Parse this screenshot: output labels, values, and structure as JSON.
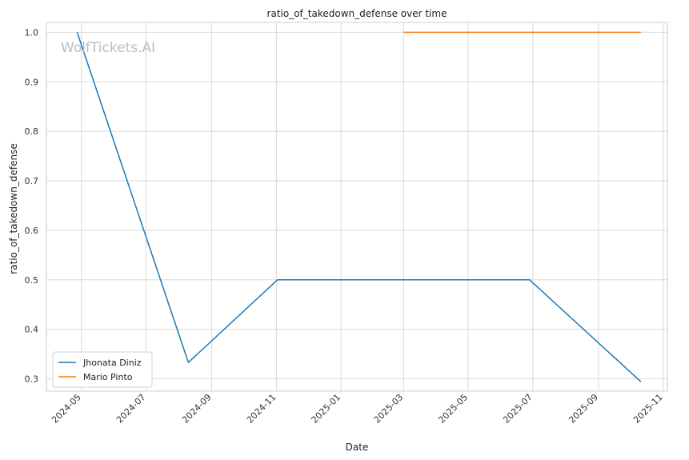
{
  "chart_data": {
    "type": "line",
    "title": "ratio_of_takedown_defense over time",
    "xlabel": "Date",
    "ylabel": "ratio_of_takedown_defense",
    "watermark": "WolfTickets.AI",
    "x_ticks": [
      "2024-05",
      "2024-07",
      "2024-09",
      "2024-11",
      "2025-01",
      "2025-03",
      "2025-05",
      "2025-07",
      "2025-09",
      "2025-11"
    ],
    "y_ticks": [
      0.3,
      0.4,
      0.5,
      0.6,
      0.7,
      0.8,
      0.9,
      1.0
    ],
    "xlim": [
      "2024-03-29",
      "2025-11-05"
    ],
    "ylim": [
      0.275,
      1.02
    ],
    "grid": true,
    "legend_position": "lower-left",
    "series": [
      {
        "name": "Jhonata Diniz",
        "color": "#1f77b4",
        "points": [
          {
            "x": "2024-04-27",
            "y": 1.0
          },
          {
            "x": "2024-08-10",
            "y": 0.333
          },
          {
            "x": "2024-11-02",
            "y": 0.5
          },
          {
            "x": "2025-06-28",
            "y": 0.5
          },
          {
            "x": "2025-10-11",
            "y": 0.294
          }
        ]
      },
      {
        "name": "Mario Pinto",
        "color": "#ff7f0e",
        "points": [
          {
            "x": "2025-03-01",
            "y": 1.0
          },
          {
            "x": "2025-10-11",
            "y": 1.0
          }
        ]
      }
    ]
  }
}
